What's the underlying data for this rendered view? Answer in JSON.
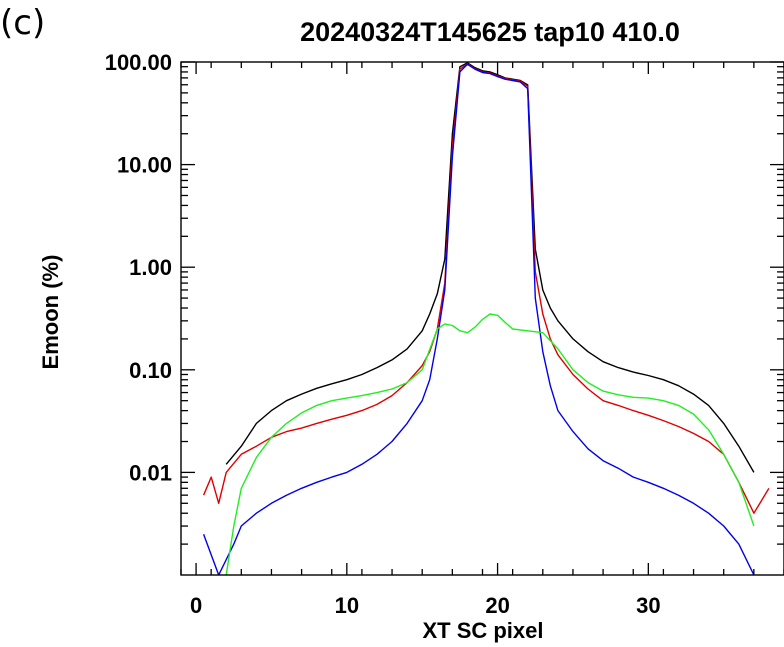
{
  "panel_label": "(c)",
  "chart_data": {
    "type": "line",
    "title": "20240324T145625 tap10  410.0",
    "xlabel": "XT SC pixel",
    "ylabel": "Emoon (%)",
    "y_scale": "log",
    "xlim": [
      -1,
      39
    ],
    "ylim": [
      0.001,
      100
    ],
    "x_ticks": [
      0,
      10,
      20,
      30
    ],
    "x_tick_labels": [
      "0",
      "10",
      "20",
      "30"
    ],
    "y_ticks": [
      0.01,
      0.1,
      1,
      10,
      100
    ],
    "y_tick_labels": [
      "0.01",
      "0.10",
      "1.00",
      "10.00",
      "100.00"
    ],
    "grid": false,
    "series": [
      {
        "color": "#000000",
        "x": [
          2.0,
          3.0,
          4.0,
          5.0,
          6.0,
          7.0,
          8.0,
          9.0,
          10.0,
          11.0,
          12.0,
          13.0,
          14.0,
          15.0,
          15.5,
          16.0,
          16.5,
          17.0,
          17.5,
          18.0,
          18.5,
          19.0,
          19.5,
          20.0,
          20.5,
          21.0,
          21.5,
          22.0,
          22.5,
          23.0,
          23.5,
          24.0,
          25.0,
          26.0,
          27.0,
          28.0,
          29.0,
          30.0,
          31.0,
          32.0,
          33.0,
          34.0,
          35.0,
          36.0,
          37.0
        ],
        "y": [
          0.012,
          0.018,
          0.03,
          0.04,
          0.05,
          0.058,
          0.066,
          0.073,
          0.08,
          0.09,
          0.105,
          0.125,
          0.16,
          0.24,
          0.35,
          0.55,
          1.2,
          20,
          90,
          98,
          88,
          82,
          80,
          75,
          70,
          68,
          66,
          60,
          1.5,
          0.6,
          0.4,
          0.3,
          0.2,
          0.15,
          0.12,
          0.105,
          0.095,
          0.088,
          0.08,
          0.07,
          0.058,
          0.045,
          0.03,
          0.018,
          0.01
        ]
      },
      {
        "color": "#e00000",
        "x": [
          0.5,
          1.0,
          1.5,
          2.0,
          3.0,
          4.0,
          5.0,
          6.0,
          7.0,
          8.0,
          9.0,
          10.0,
          11.0,
          12.0,
          13.0,
          14.0,
          15.0,
          15.5,
          16.0,
          16.5,
          17.0,
          17.5,
          18.0,
          18.5,
          19.0,
          19.5,
          20.0,
          20.5,
          21.0,
          21.5,
          22.0,
          22.5,
          23.0,
          23.5,
          24.0,
          25.0,
          26.0,
          27.0,
          28.0,
          29.0,
          30.0,
          31.0,
          32.0,
          33.0,
          34.0,
          35.0,
          36.0,
          37.0,
          38.0
        ],
        "y": [
          0.006,
          0.009,
          0.005,
          0.01,
          0.015,
          0.018,
          0.022,
          0.025,
          0.027,
          0.03,
          0.033,
          0.036,
          0.04,
          0.046,
          0.056,
          0.075,
          0.11,
          0.15,
          0.25,
          0.7,
          15,
          85,
          96,
          86,
          80,
          78,
          73,
          69,
          67,
          65,
          58,
          0.9,
          0.35,
          0.2,
          0.14,
          0.09,
          0.065,
          0.05,
          0.045,
          0.04,
          0.036,
          0.032,
          0.028,
          0.024,
          0.02,
          0.015,
          0.008,
          0.004,
          0.007
        ]
      },
      {
        "color": "#0000ee",
        "x": [
          0.5,
          1.5,
          2.5,
          3.0,
          4.0,
          5.0,
          6.0,
          7.0,
          8.0,
          9.0,
          10.0,
          11.0,
          12.0,
          13.0,
          14.0,
          15.0,
          15.5,
          16.0,
          16.5,
          17.0,
          17.5,
          18.0,
          18.5,
          19.0,
          19.5,
          20.0,
          20.5,
          21.0,
          21.5,
          22.0,
          22.5,
          23.0,
          23.5,
          24.0,
          25.0,
          26.0,
          27.0,
          28.0,
          29.0,
          30.0,
          31.0,
          32.0,
          33.0,
          34.0,
          35.0,
          36.0,
          37.0
        ],
        "y": [
          0.0025,
          0.001,
          0.002,
          0.003,
          0.004,
          0.005,
          0.006,
          0.007,
          0.008,
          0.009,
          0.01,
          0.012,
          0.015,
          0.02,
          0.03,
          0.05,
          0.08,
          0.2,
          0.6,
          12,
          80,
          95,
          85,
          79,
          77,
          72,
          68,
          66,
          64,
          55,
          0.5,
          0.15,
          0.07,
          0.04,
          0.025,
          0.017,
          0.013,
          0.011,
          0.009,
          0.008,
          0.007,
          0.006,
          0.005,
          0.004,
          0.003,
          0.002,
          0.001
        ]
      },
      {
        "color": "#22ee22",
        "x": [
          2.0,
          2.5,
          3.0,
          4.0,
          5.0,
          6.0,
          7.0,
          8.0,
          9.0,
          10.0,
          11.0,
          12.0,
          13.0,
          14.0,
          15.0,
          16.0,
          16.5,
          17.0,
          17.5,
          18.0,
          18.5,
          19.0,
          19.5,
          20.0,
          20.5,
          21.0,
          22.0,
          23.0,
          24.0,
          25.0,
          26.0,
          27.0,
          28.0,
          29.0,
          30.0,
          31.0,
          32.0,
          33.0,
          34.0,
          35.0,
          36.0,
          37.0
        ],
        "y": [
          0.001,
          0.003,
          0.007,
          0.014,
          0.022,
          0.03,
          0.038,
          0.045,
          0.05,
          0.053,
          0.056,
          0.06,
          0.065,
          0.075,
          0.1,
          0.25,
          0.28,
          0.27,
          0.24,
          0.23,
          0.26,
          0.31,
          0.35,
          0.34,
          0.29,
          0.25,
          0.24,
          0.23,
          0.16,
          0.1,
          0.075,
          0.062,
          0.057,
          0.054,
          0.053,
          0.05,
          0.045,
          0.037,
          0.026,
          0.015,
          0.008,
          0.003
        ]
      }
    ]
  }
}
